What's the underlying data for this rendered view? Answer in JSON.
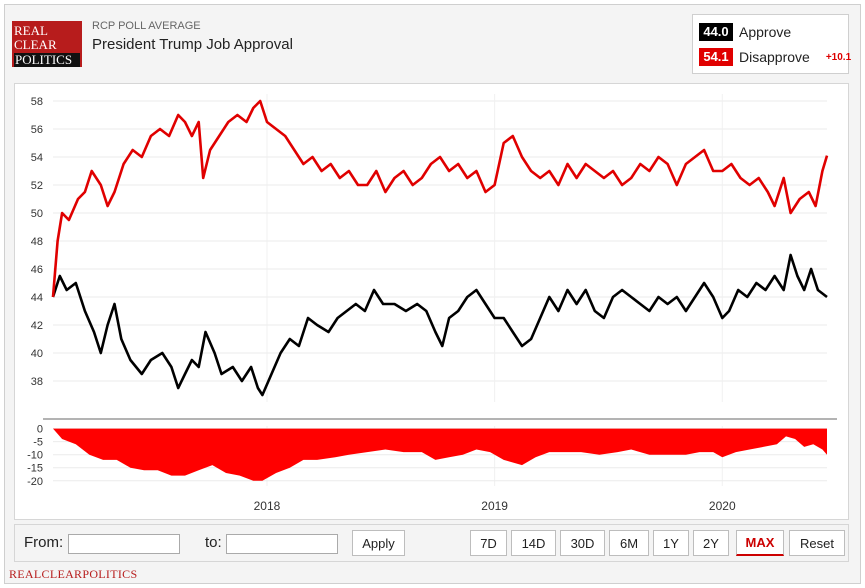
{
  "header": {
    "logo_lines": [
      "REAL",
      "CLEAR",
      "POLITICS"
    ],
    "subtitle": "RCP POLL AVERAGE",
    "title": "President Trump Job Approval"
  },
  "legend": {
    "approve": {
      "value": "44.0",
      "label": "Approve",
      "color": "#000000"
    },
    "disapprove": {
      "value": "54.1",
      "label": "Disapprove",
      "color": "#e00000"
    },
    "spread": "+10.1"
  },
  "controls": {
    "from_label": "From:",
    "to_label": "to:",
    "from_value": "",
    "to_value": "",
    "apply_label": "Apply",
    "ranges": [
      "7D",
      "14D",
      "30D",
      "6M",
      "1Y",
      "2Y",
      "MAX"
    ],
    "active_range": "MAX",
    "reset_label": "Reset"
  },
  "footer": {
    "text": "REALCLEARPOLITICS"
  },
  "chart_data": {
    "type": "line",
    "x_ticks": [
      "2018",
      "2019",
      "2020"
    ],
    "y_ticks": [
      38,
      40,
      42,
      44,
      46,
      48,
      50,
      52,
      54,
      56,
      58
    ],
    "ylim": [
      36.5,
      58.5
    ],
    "spread_ticks": [
      0,
      -5,
      -10,
      -15,
      -20
    ],
    "spread_ylim": [
      -22,
      1
    ],
    "x_start": 2017.06,
    "x_end": 2020.46,
    "series": [
      {
        "name": "Approve",
        "color": "#000000",
        "points": [
          [
            2017.06,
            44.0
          ],
          [
            2017.09,
            45.5
          ],
          [
            2017.12,
            44.5
          ],
          [
            2017.16,
            45.0
          ],
          [
            2017.2,
            43.0
          ],
          [
            2017.24,
            41.5
          ],
          [
            2017.27,
            40.0
          ],
          [
            2017.3,
            42.0
          ],
          [
            2017.33,
            43.5
          ],
          [
            2017.36,
            41.0
          ],
          [
            2017.4,
            39.5
          ],
          [
            2017.45,
            38.5
          ],
          [
            2017.49,
            39.5
          ],
          [
            2017.54,
            40.0
          ],
          [
            2017.58,
            39.0
          ],
          [
            2017.61,
            37.5
          ],
          [
            2017.64,
            38.5
          ],
          [
            2017.67,
            39.5
          ],
          [
            2017.7,
            39.0
          ],
          [
            2017.73,
            41.5
          ],
          [
            2017.77,
            40.0
          ],
          [
            2017.8,
            38.5
          ],
          [
            2017.85,
            39.0
          ],
          [
            2017.89,
            38.0
          ],
          [
            2017.93,
            39.0
          ],
          [
            2017.96,
            37.5
          ],
          [
            2017.98,
            37.0
          ],
          [
            2018.02,
            38.5
          ],
          [
            2018.06,
            40.0
          ],
          [
            2018.1,
            41.0
          ],
          [
            2018.14,
            40.5
          ],
          [
            2018.18,
            42.5
          ],
          [
            2018.22,
            42.0
          ],
          [
            2018.27,
            41.5
          ],
          [
            2018.31,
            42.5
          ],
          [
            2018.35,
            43.0
          ],
          [
            2018.39,
            43.5
          ],
          [
            2018.43,
            43.0
          ],
          [
            2018.47,
            44.5
          ],
          [
            2018.51,
            43.5
          ],
          [
            2018.56,
            43.5
          ],
          [
            2018.61,
            43.0
          ],
          [
            2018.66,
            43.5
          ],
          [
            2018.7,
            43.0
          ],
          [
            2018.74,
            41.5
          ],
          [
            2018.77,
            40.5
          ],
          [
            2018.8,
            42.5
          ],
          [
            2018.84,
            43.0
          ],
          [
            2018.88,
            44.0
          ],
          [
            2018.92,
            44.5
          ],
          [
            2018.96,
            43.5
          ],
          [
            2019.0,
            42.5
          ],
          [
            2019.04,
            42.5
          ],
          [
            2019.08,
            41.5
          ],
          [
            2019.12,
            40.5
          ],
          [
            2019.16,
            41.0
          ],
          [
            2019.2,
            42.5
          ],
          [
            2019.24,
            44.0
          ],
          [
            2019.28,
            43.0
          ],
          [
            2019.32,
            44.5
          ],
          [
            2019.36,
            43.5
          ],
          [
            2019.4,
            44.5
          ],
          [
            2019.44,
            43.0
          ],
          [
            2019.48,
            42.5
          ],
          [
            2019.52,
            44.0
          ],
          [
            2019.56,
            44.5
          ],
          [
            2019.6,
            44.0
          ],
          [
            2019.64,
            43.5
          ],
          [
            2019.68,
            43.0
          ],
          [
            2019.72,
            44.0
          ],
          [
            2019.76,
            43.5
          ],
          [
            2019.8,
            44.0
          ],
          [
            2019.84,
            43.0
          ],
          [
            2019.88,
            44.0
          ],
          [
            2019.92,
            45.0
          ],
          [
            2019.96,
            44.0
          ],
          [
            2020.0,
            42.5
          ],
          [
            2020.03,
            43.0
          ],
          [
            2020.07,
            44.5
          ],
          [
            2020.11,
            44.0
          ],
          [
            2020.15,
            45.0
          ],
          [
            2020.19,
            44.5
          ],
          [
            2020.23,
            45.5
          ],
          [
            2020.27,
            44.5
          ],
          [
            2020.3,
            47.0
          ],
          [
            2020.33,
            45.5
          ],
          [
            2020.36,
            44.5
          ],
          [
            2020.39,
            46.0
          ],
          [
            2020.42,
            44.5
          ],
          [
            2020.46,
            44.0
          ]
        ]
      },
      {
        "name": "Disapprove",
        "color": "#e00000",
        "points": [
          [
            2017.06,
            44.0
          ],
          [
            2017.08,
            48.0
          ],
          [
            2017.1,
            50.0
          ],
          [
            2017.13,
            49.5
          ],
          [
            2017.17,
            51.0
          ],
          [
            2017.2,
            51.5
          ],
          [
            2017.23,
            53.0
          ],
          [
            2017.27,
            52.0
          ],
          [
            2017.3,
            50.5
          ],
          [
            2017.33,
            51.5
          ],
          [
            2017.37,
            53.5
          ],
          [
            2017.41,
            54.5
          ],
          [
            2017.45,
            54.0
          ],
          [
            2017.49,
            55.5
          ],
          [
            2017.53,
            56.0
          ],
          [
            2017.57,
            55.5
          ],
          [
            2017.61,
            57.0
          ],
          [
            2017.64,
            56.5
          ],
          [
            2017.67,
            55.5
          ],
          [
            2017.7,
            56.5
          ],
          [
            2017.72,
            52.5
          ],
          [
            2017.75,
            54.5
          ],
          [
            2017.79,
            55.5
          ],
          [
            2017.83,
            56.5
          ],
          [
            2017.87,
            57.0
          ],
          [
            2017.91,
            56.5
          ],
          [
            2017.94,
            57.5
          ],
          [
            2017.97,
            58.0
          ],
          [
            2018.0,
            56.5
          ],
          [
            2018.04,
            56.0
          ],
          [
            2018.08,
            55.5
          ],
          [
            2018.12,
            54.5
          ],
          [
            2018.16,
            53.5
          ],
          [
            2018.2,
            54.0
          ],
          [
            2018.24,
            53.0
          ],
          [
            2018.28,
            53.5
          ],
          [
            2018.32,
            52.5
          ],
          [
            2018.36,
            53.0
          ],
          [
            2018.4,
            52.0
          ],
          [
            2018.44,
            52.0
          ],
          [
            2018.48,
            53.0
          ],
          [
            2018.52,
            51.5
          ],
          [
            2018.56,
            52.5
          ],
          [
            2018.6,
            53.0
          ],
          [
            2018.64,
            52.0
          ],
          [
            2018.68,
            52.5
          ],
          [
            2018.72,
            53.5
          ],
          [
            2018.76,
            54.0
          ],
          [
            2018.8,
            53.0
          ],
          [
            2018.84,
            53.5
          ],
          [
            2018.88,
            52.5
          ],
          [
            2018.92,
            53.0
          ],
          [
            2018.96,
            51.5
          ],
          [
            2019.0,
            52.0
          ],
          [
            2019.04,
            55.0
          ],
          [
            2019.08,
            55.5
          ],
          [
            2019.12,
            54.0
          ],
          [
            2019.16,
            53.0
          ],
          [
            2019.2,
            52.5
          ],
          [
            2019.24,
            53.0
          ],
          [
            2019.28,
            52.0
          ],
          [
            2019.32,
            53.5
          ],
          [
            2019.36,
            52.5
          ],
          [
            2019.4,
            53.5
          ],
          [
            2019.44,
            53.0
          ],
          [
            2019.48,
            52.5
          ],
          [
            2019.52,
            53.0
          ],
          [
            2019.56,
            52.0
          ],
          [
            2019.6,
            52.5
          ],
          [
            2019.64,
            53.5
          ],
          [
            2019.68,
            53.0
          ],
          [
            2019.72,
            54.0
          ],
          [
            2019.76,
            53.5
          ],
          [
            2019.8,
            52.0
          ],
          [
            2019.84,
            53.5
          ],
          [
            2019.88,
            54.0
          ],
          [
            2019.92,
            54.5
          ],
          [
            2019.96,
            53.0
          ],
          [
            2020.0,
            53.0
          ],
          [
            2020.04,
            53.5
          ],
          [
            2020.08,
            52.5
          ],
          [
            2020.12,
            52.0
          ],
          [
            2020.16,
            52.5
          ],
          [
            2020.2,
            51.5
          ],
          [
            2020.23,
            50.5
          ],
          [
            2020.27,
            52.5
          ],
          [
            2020.3,
            50.0
          ],
          [
            2020.34,
            51.0
          ],
          [
            2020.38,
            51.5
          ],
          [
            2020.41,
            50.5
          ],
          [
            2020.44,
            53.0
          ],
          [
            2020.46,
            54.1
          ]
        ]
      }
    ],
    "spread_series": {
      "name": "Spread",
      "color": "#ff0000",
      "points": [
        [
          2017.06,
          0
        ],
        [
          2017.1,
          -4
        ],
        [
          2017.16,
          -6
        ],
        [
          2017.22,
          -10
        ],
        [
          2017.28,
          -12
        ],
        [
          2017.34,
          -12
        ],
        [
          2017.4,
          -15
        ],
        [
          2017.46,
          -16
        ],
        [
          2017.52,
          -16
        ],
        [
          2017.58,
          -18
        ],
        [
          2017.64,
          -18
        ],
        [
          2017.7,
          -16
        ],
        [
          2017.76,
          -14
        ],
        [
          2017.82,
          -17
        ],
        [
          2017.88,
          -18
        ],
        [
          2017.94,
          -20
        ],
        [
          2017.98,
          -20
        ],
        [
          2018.04,
          -17
        ],
        [
          2018.1,
          -15
        ],
        [
          2018.16,
          -12
        ],
        [
          2018.22,
          -12
        ],
        [
          2018.3,
          -11
        ],
        [
          2018.36,
          -10
        ],
        [
          2018.44,
          -9
        ],
        [
          2018.52,
          -8
        ],
        [
          2018.6,
          -9
        ],
        [
          2018.68,
          -9
        ],
        [
          2018.74,
          -12
        ],
        [
          2018.8,
          -11
        ],
        [
          2018.86,
          -10
        ],
        [
          2018.92,
          -8
        ],
        [
          2018.98,
          -9
        ],
        [
          2019.04,
          -12
        ],
        [
          2019.12,
          -14
        ],
        [
          2019.18,
          -11
        ],
        [
          2019.24,
          -9
        ],
        [
          2019.3,
          -9
        ],
        [
          2019.38,
          -9
        ],
        [
          2019.46,
          -10
        ],
        [
          2019.54,
          -9
        ],
        [
          2019.6,
          -8
        ],
        [
          2019.68,
          -10
        ],
        [
          2019.76,
          -10
        ],
        [
          2019.84,
          -10
        ],
        [
          2019.9,
          -9
        ],
        [
          2019.96,
          -9
        ],
        [
          2020.0,
          -11
        ],
        [
          2020.06,
          -9
        ],
        [
          2020.12,
          -8
        ],
        [
          2020.18,
          -7
        ],
        [
          2020.24,
          -6
        ],
        [
          2020.28,
          -3
        ],
        [
          2020.32,
          -4
        ],
        [
          2020.36,
          -7
        ],
        [
          2020.4,
          -6
        ],
        [
          2020.44,
          -8
        ],
        [
          2020.46,
          -10
        ]
      ]
    }
  }
}
